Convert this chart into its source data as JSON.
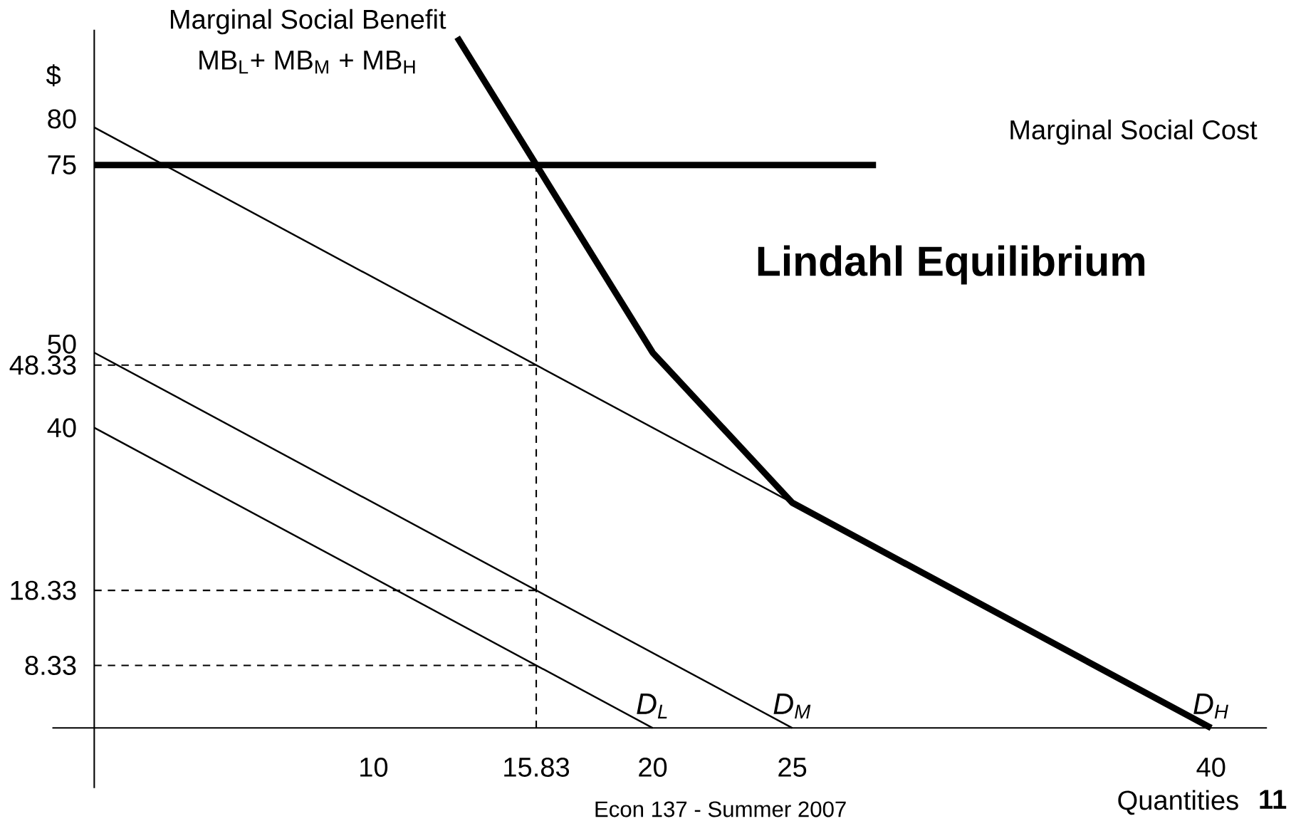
{
  "chart_data": {
    "type": "line",
    "title": "Lindahl Equilibrium",
    "xlabel": "Quantities",
    "ylabel": "$",
    "annotations": [
      "Marginal Social Benefit",
      "MB$_{L}$+ MB$_{M}$ + MB$_{H}$",
      "Marginal Social Cost",
      "Econ 137 - Summer 2007",
      "11"
    ],
    "xlim": [
      -1.5,
      42
    ],
    "ylim": [
      -8,
      93
    ],
    "xticks": [
      10,
      15.83,
      20,
      25,
      40
    ],
    "yticks": [
      8.33,
      18.33,
      40,
      48.33,
      50,
      75,
      80
    ],
    "grid": false,
    "marker": "none",
    "series": [
      {
        "name": "D$_{L}$",
        "color": "#000000",
        "x": [
          0,
          20
        ],
        "values": [
          40,
          0
        ]
      },
      {
        "name": "D$_{M}$",
        "color": "#000000",
        "x": [
          0,
          25
        ],
        "values": [
          50,
          0
        ]
      },
      {
        "name": "D$_{H}$",
        "color": "#000000",
        "x": [
          0,
          40
        ],
        "values": [
          80,
          0
        ]
      },
      {
        "color": "#000000",
        "x": [
          13,
          20,
          25,
          40
        ],
        "values": [
          92,
          50,
          30,
          0
        ]
      },
      {
        "color": "#000000",
        "x": [
          0,
          28
        ],
        "values": [
          75,
          75
        ]
      },
      {
        "color": "#000000",
        "line_style": "dashed",
        "x": [
          15.83,
          15.83
        ],
        "values": [
          0,
          75
        ]
      },
      {
        "color": "#000000",
        "line_style": "dashed",
        "x": [
          0,
          15.83
        ],
        "values": [
          48.33,
          48.33
        ]
      },
      {
        "color": "#000000",
        "line_style": "dashed",
        "x": [
          0,
          15.83
        ],
        "values": [
          18.33,
          18.33
        ]
      },
      {
        "color": "#000000",
        "line_style": "dashed",
        "x": [
          0,
          15.83
        ],
        "values": [
          8.33,
          8.33
        ]
      }
    ]
  }
}
